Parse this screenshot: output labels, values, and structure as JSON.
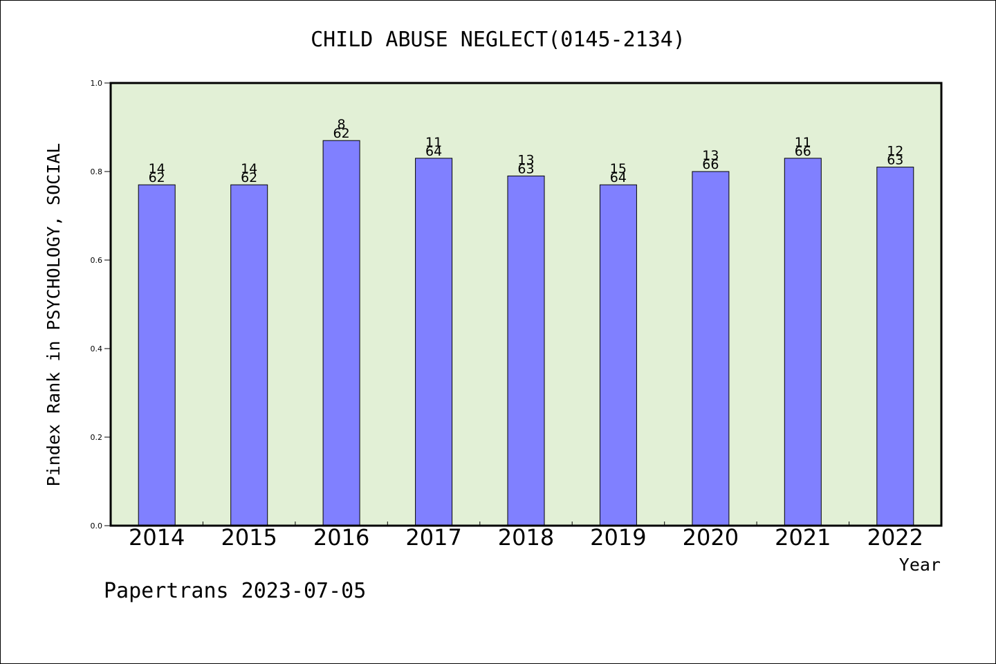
{
  "chart_data": {
    "type": "bar",
    "title": "CHILD ABUSE NEGLECT(0145-2134)",
    "xlabel": "Year",
    "ylabel": "Pindex Rank in PSYCHOLOGY, SOCIAL",
    "ylim": [
      0,
      1.0
    ],
    "yticks": [
      "0.0",
      "0.2",
      "0.4",
      "0.6",
      "0.8",
      "1.0"
    ],
    "categories": [
      "2014",
      "2015",
      "2016",
      "2017",
      "2018",
      "2019",
      "2020",
      "2021",
      "2022"
    ],
    "values": [
      0.77,
      0.77,
      0.87,
      0.83,
      0.79,
      0.77,
      0.8,
      0.83,
      0.81
    ],
    "label_top": [
      "14",
      "14",
      "8",
      "11",
      "13",
      "15",
      "13",
      "11",
      "12"
    ],
    "label_bottom": [
      "62",
      "62",
      "62",
      "64",
      "63",
      "64",
      "66",
      "66",
      "63"
    ],
    "grid": false,
    "colors": {
      "bar": "#8080ff",
      "plot_background": "#e2f0d6"
    }
  },
  "footer": {
    "source": "Papertrans 2023-07-05"
  }
}
